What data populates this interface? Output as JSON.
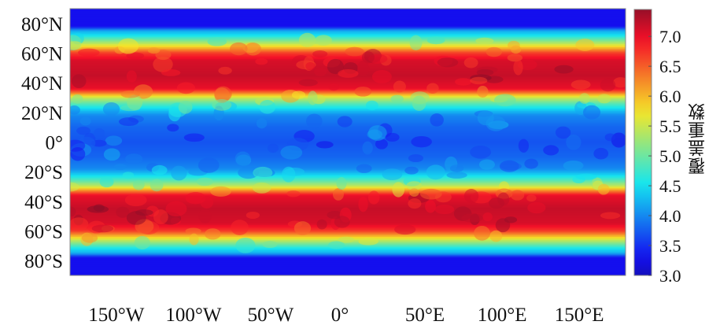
{
  "chart_data": {
    "type": "heatmap",
    "title": "",
    "colorbar_label": "覆盖重数",
    "colormap": "jet",
    "clim": [
      3.0,
      7.45
    ],
    "colorbar_ticks": [
      "3.0",
      "3.5",
      "4.0",
      "4.5",
      "5.0",
      "5.5",
      "6.0",
      "6.5",
      "7.0"
    ],
    "colorbar_tick_values": [
      3.0,
      3.5,
      4.0,
      4.5,
      5.0,
      5.5,
      6.0,
      6.5,
      7.0
    ],
    "y_ticks": [
      "80°N",
      "60°N",
      "40°N",
      "20°N",
      "0°",
      "20°S",
      "40°S",
      "60°S",
      "80°S"
    ],
    "y_tick_values": [
      80,
      60,
      40,
      20,
      0,
      -20,
      -40,
      -60,
      -80
    ],
    "x_ticks": [
      "150°W",
      "100°W",
      "50°W",
      "0°",
      "50°E",
      "100°E",
      "150°E"
    ],
    "x_tick_values": [
      -150,
      -100,
      -50,
      0,
      50,
      100,
      150
    ],
    "xlim": [
      -180,
      180
    ],
    "ylim": [
      -90,
      90
    ],
    "latitude_profile": {
      "abs_lat": [
        0,
        10,
        18,
        22,
        26,
        30,
        33,
        36,
        45,
        55,
        60,
        63,
        66,
        69,
        72,
        75,
        78,
        90
      ],
      "coverage": [
        3.7,
        3.8,
        4.0,
        4.4,
        4.9,
        5.5,
        6.3,
        7.0,
        7.2,
        7.1,
        6.7,
        6.1,
        5.5,
        5.0,
        4.5,
        4.2,
        3.3,
        3.3
      ]
    }
  }
}
